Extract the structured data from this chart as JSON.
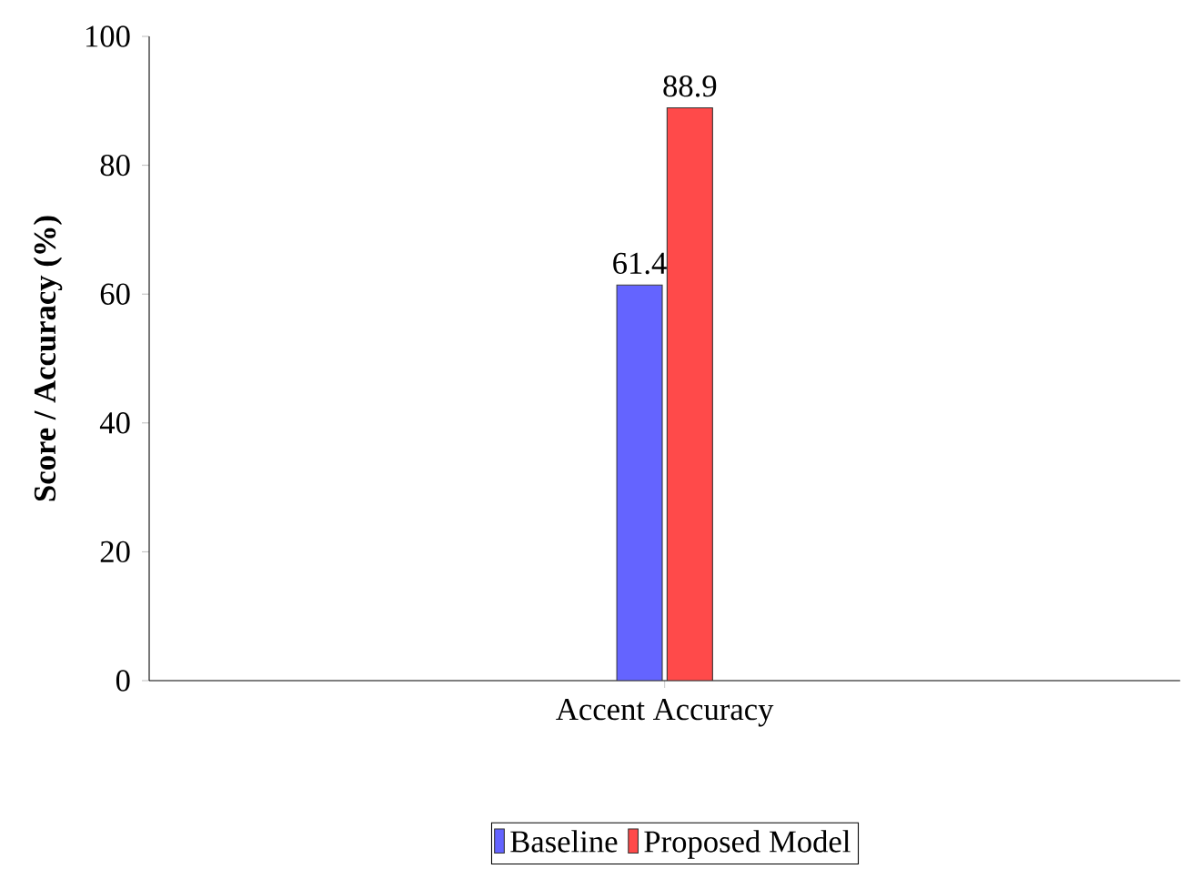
{
  "chart_data": {
    "type": "bar",
    "ylabel": "Score / Accuracy (%)",
    "categories": [
      "Accent Accuracy"
    ],
    "series": [
      {
        "name": "Baseline",
        "color": "#6464ff",
        "values": [
          61.4
        ]
      },
      {
        "name": "Proposed Model",
        "color": "#ff4a4a",
        "values": [
          88.9
        ]
      }
    ],
    "ylim": [
      0,
      100
    ],
    "yticks": [
      0,
      20,
      40,
      60,
      80,
      100
    ],
    "data_labels": true,
    "legend": "bottom",
    "grid": false
  }
}
